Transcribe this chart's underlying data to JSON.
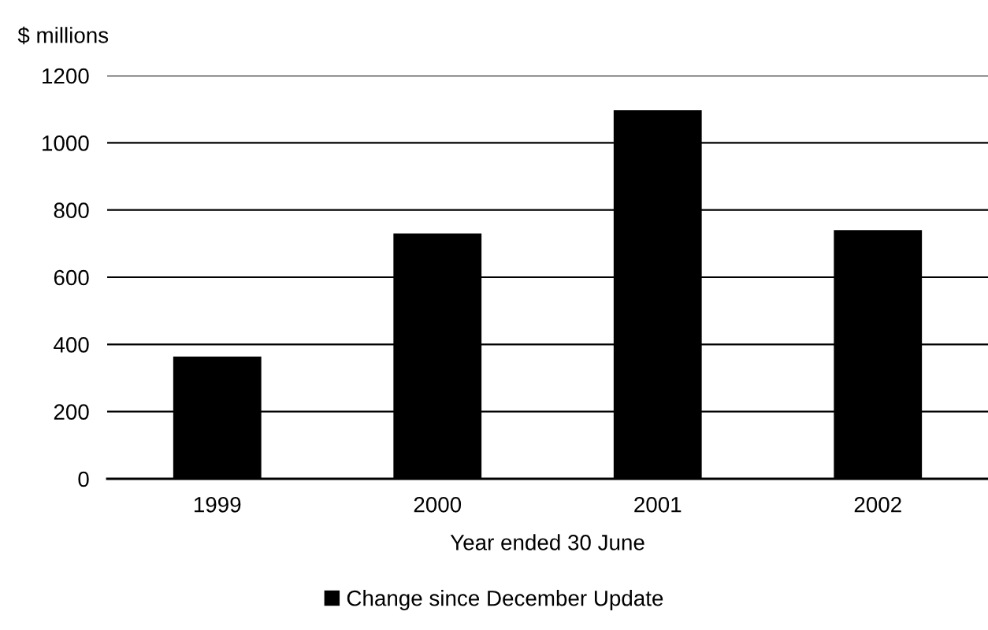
{
  "chart_data": {
    "type": "bar",
    "ylabel": "$ millions",
    "xlabel": "Year ended 30 June",
    "categories": [
      "1999",
      "2000",
      "2001",
      "2002"
    ],
    "series": [
      {
        "name": "Change since December Update",
        "color": "#000000",
        "values": [
          364,
          730,
          1097,
          740
        ]
      }
    ],
    "ylim": [
      0,
      1200
    ],
    "yticks": [
      0,
      200,
      400,
      600,
      800,
      1000,
      1200
    ],
    "grid": "y",
    "legend": "bottom"
  }
}
